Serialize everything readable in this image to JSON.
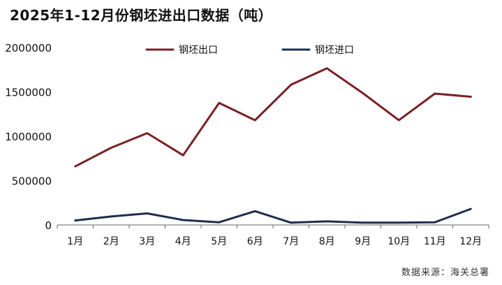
{
  "chart_data": {
    "type": "line",
    "title": "2025年1-12月份钢坯进出口数据（吨）",
    "categories": [
      "1月",
      "2月",
      "3月",
      "4月",
      "5月",
      "6月",
      "7月",
      "8月",
      "9月",
      "10月",
      "11月",
      "12月"
    ],
    "series": [
      {
        "name": "钢坯出口",
        "color": "#7a1f24",
        "values": [
          660000,
          870000,
          1035000,
          785000,
          1375000,
          1180000,
          1580000,
          1765000,
          1485000,
          1180000,
          1480000,
          1445000
        ]
      },
      {
        "name": "钢坯进口",
        "color": "#1c2d4f",
        "values": [
          50000,
          95000,
          130000,
          55000,
          30000,
          155000,
          25000,
          40000,
          25000,
          25000,
          30000,
          180000
        ]
      }
    ],
    "y_ticks": [
      "0",
      "500000",
      "1000000",
      "1500000",
      "2000000"
    ],
    "ylim": [
      0,
      2000000
    ],
    "grid": false,
    "legend_position": "top"
  },
  "source_text": "数据来源：海关总署"
}
